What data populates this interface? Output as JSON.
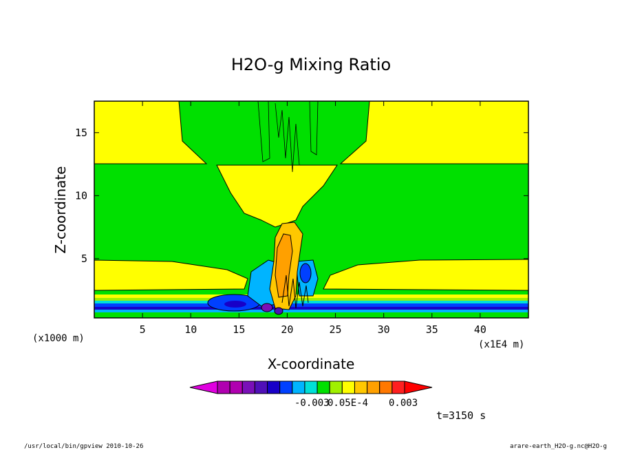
{
  "chart_data": {
    "type": "heatmap",
    "title": "H2O-g Mixing Ratio",
    "xlabel": "X-coordinate",
    "ylabel": "Z-coordinate",
    "x_unit": "(x1E4 m)",
    "y_unit": "(x1000 m)",
    "xlim": [
      0,
      45
    ],
    "ylim": [
      0.3,
      17.5
    ],
    "x_ticks": [
      5,
      10,
      15,
      20,
      25,
      30,
      35,
      40
    ],
    "y_ticks": [
      5,
      10,
      15
    ],
    "x_tick_labels": [
      "5",
      "10",
      "15",
      "20",
      "25",
      "30",
      "35",
      "40"
    ],
    "y_tick_labels": [
      "5",
      "10",
      "15"
    ],
    "time_label": "t=3150 s",
    "colorbar": {
      "tick_labels": [
        "-0.003",
        "0.05E-4",
        "0.003"
      ],
      "colors": [
        "#b000b0",
        "#b000b0",
        "#7a10b8",
        "#5010b8",
        "#1800c8",
        "#0040ff",
        "#00b4ff",
        "#00e0d8",
        "#00e000",
        "#a0f000",
        "#ffff00",
        "#ffc800",
        "#ffa000",
        "#ff7800",
        "#ff2020"
      ],
      "extend_colors": [
        "#e000e0",
        "#ff0000"
      ]
    },
    "regions": {
      "upper_yellow": "#ffff00",
      "green": "#00e000",
      "orange": "#ffa000",
      "light_orange": "#ffc800",
      "blue": "#0040ff",
      "dark_blue": "#1800c8",
      "cyan": "#00b4ff",
      "purple": "#7a10b8"
    }
  },
  "footer": {
    "left": "/usr/local/bin/gpview  2010-10-26",
    "right": "arare-earth_H2O-g.nc@H2O-g"
  }
}
